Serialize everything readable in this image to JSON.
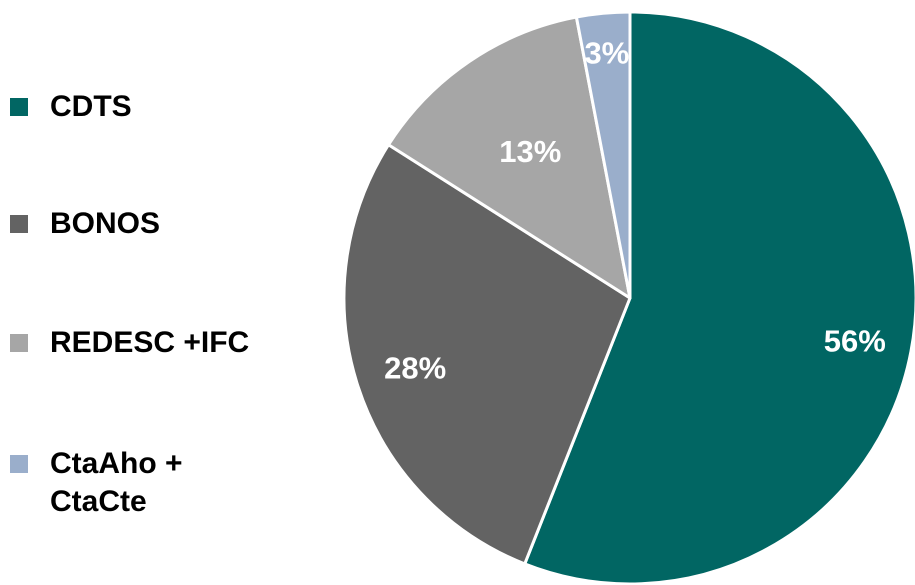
{
  "chart_data": {
    "type": "pie",
    "categories": [
      "CDTS",
      "BONOS",
      "REDESC +IFC",
      "CtaAho + CtaCte"
    ],
    "values": [
      56,
      28,
      13,
      3
    ],
    "value_labels": [
      "56%",
      "28%",
      "13%",
      "3%"
    ],
    "colors": [
      "#016663",
      "#636363",
      "#a6a6a6",
      "#9aaecb"
    ],
    "legend_position": "left",
    "title": ""
  },
  "legend": {
    "items": [
      {
        "label": "CDTS",
        "color": "#016663"
      },
      {
        "label": "BONOS",
        "color": "#636363"
      },
      {
        "label": "REDESC +IFC",
        "color": "#a6a6a6"
      },
      {
        "label": "CtaAho +\nCtaCte",
        "color": "#9aaecb"
      }
    ]
  }
}
